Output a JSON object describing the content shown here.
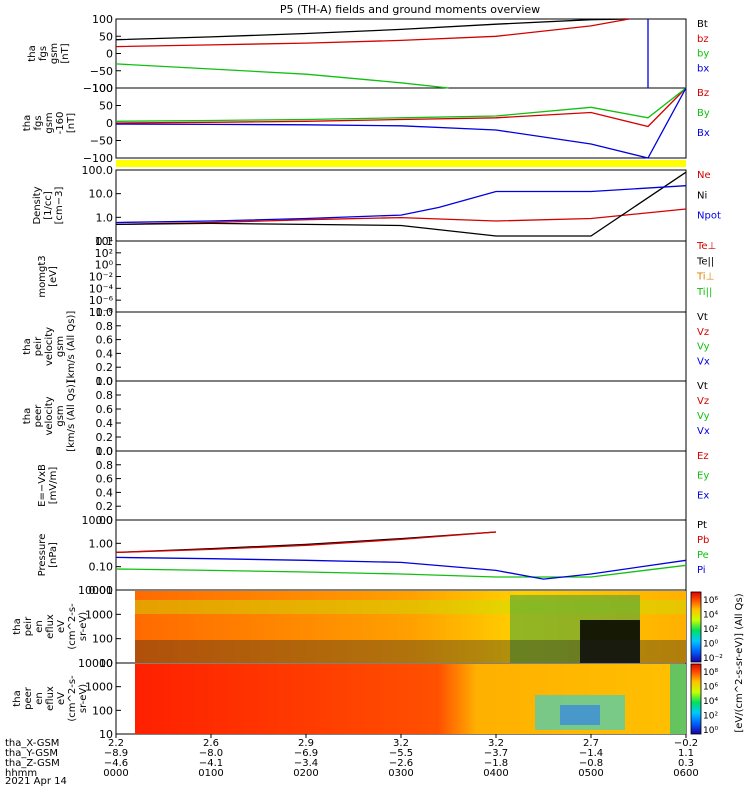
{
  "title": "P5 (TH-A) fields and ground moments overview",
  "panels": [
    {
      "id": "fgs_gsm",
      "ylabel": [
        "tha",
        "fgs",
        "gsm",
        "[nT]"
      ],
      "ticks": [
        "100",
        "50",
        "0",
        "−50",
        "−100"
      ],
      "legend": [
        "Bt",
        "bz",
        "by",
        "bx"
      ],
      "legend_colors": [
        "#000000",
        "#d40000",
        "#10c010",
        "#0000e0"
      ]
    },
    {
      "id": "fgs_gsm_1s",
      "ylabel": [
        "tha",
        "fgs",
        "gsm",
        "-160",
        "[nT]"
      ],
      "ticks": [
        "100",
        "50",
        "0",
        "−50",
        "−100"
      ],
      "legend": [
        "Bz",
        "By",
        "Bx"
      ],
      "legend_colors": [
        "#d40000",
        "#10c010",
        "#0000e0"
      ]
    },
    {
      "id": "density",
      "ylabel": [
        "Density",
        "[1/cc]",
        "[cm−3]"
      ],
      "ticks": [
        "100.0",
        "10.0",
        "1.0",
        "0.1"
      ],
      "legend": [
        "Ne",
        "Ni",
        "Npot"
      ],
      "legend_colors": [
        "#d40000",
        "#000000",
        "#0000e0"
      ]
    },
    {
      "id": "temperature",
      "ylabel": [
        "momgt3",
        "[eV]"
      ],
      "ticks": [
        "10⁴",
        "10²",
        "10⁰",
        "10⁻²",
        "10⁻⁴",
        "10⁻⁶",
        "10⁻⁸"
      ],
      "legend": [
        "Te⊥",
        "Te||",
        "Ti⊥",
        "Ti||"
      ],
      "legend_colors": [
        "#d40000",
        "#000000",
        "#e08000",
        "#10c010"
      ]
    },
    {
      "id": "peir_velocity",
      "ylabel": [
        "tha",
        "peir",
        "velocity",
        "gsm",
        "[km/s (All Qs)]"
      ],
      "ticks": [
        "1.0",
        "0.8",
        "0.6",
        "0.4",
        "0.2",
        "0.0"
      ],
      "legend": [
        "Vt",
        "Vz",
        "Vy",
        "Vx"
      ],
      "legend_colors": [
        "#000000",
        "#d40000",
        "#10c010",
        "#0000e0"
      ]
    },
    {
      "id": "peer_velocity",
      "ylabel": [
        "tha",
        "peer",
        "velocity",
        "gsm",
        "[km/s (All Qs)]"
      ],
      "ticks": [
        "1.0",
        "0.8",
        "0.6",
        "0.4",
        "0.2",
        "0.0"
      ],
      "legend": [
        "Vt",
        "Vz",
        "Vy",
        "Vx"
      ],
      "legend_colors": [
        "#000000",
        "#d40000",
        "#10c010",
        "#0000e0"
      ]
    },
    {
      "id": "efield",
      "ylabel": [
        "E=−VxB",
        "[mV/m]"
      ],
      "ticks": [
        "1.0",
        "0.8",
        "0.6",
        "0.4",
        "0.2",
        "0.0"
      ],
      "legend": [
        "Ez",
        "Ey",
        "Ex"
      ],
      "legend_colors": [
        "#d40000",
        "#10c010",
        "#0000e0"
      ]
    },
    {
      "id": "pressure",
      "ylabel": [
        "Pressure",
        "[nPa]"
      ],
      "ticks": [
        "10.00",
        "1.00",
        "0.10",
        "0.01"
      ],
      "legend": [
        "Pt",
        "Pb",
        "Pe",
        "Pi"
      ],
      "legend_colors": [
        "#000000",
        "#d40000",
        "#10c010",
        "#0000e0"
      ]
    },
    {
      "id": "peir_spec",
      "ylabel": [
        "tha",
        "peir",
        "en",
        "eflux",
        "eV",
        "(cm^2-s-",
        "sr-eV)"
      ],
      "ticks": [
        "10000",
        "1000",
        "100",
        "10"
      ]
    },
    {
      "id": "peer_spec",
      "ylabel": [
        "tha",
        "peer",
        "en",
        "eflux",
        "eV",
        "(cm^2-s-",
        "sr-eV)"
      ],
      "ticks": [
        "10000",
        "1000",
        "100",
        "10"
      ]
    }
  ],
  "colorbar": {
    "label": "[eV/(cm^2-s-sr-eV)] (All Qs)",
    "top_ticks": [
      "10⁶",
      "10⁴",
      "10²",
      "10⁰",
      "10⁻²"
    ],
    "bottom_ticks": [
      "10⁸",
      "10⁶",
      "10⁴",
      "10²",
      "10⁰"
    ]
  },
  "xaxis": {
    "rows": [
      {
        "label": "tha_X-GSM",
        "values": [
          "2.2",
          "2.6",
          "2.9",
          "3.2",
          "3.2",
          "2.7",
          "−0.2"
        ]
      },
      {
        "label": "tha_Y-GSM",
        "values": [
          "−8.9",
          "−8.0",
          "−6.9",
          "−5.5",
          "−3.7",
          "−1.4",
          "1.1"
        ]
      },
      {
        "label": "tha_Z-GSM",
        "values": [
          "−4.6",
          "−4.1",
          "−3.4",
          "−2.6",
          "−1.8",
          "−0.8",
          "0.3"
        ]
      },
      {
        "label": "hhmm",
        "values": [
          "0000",
          "0100",
          "0200",
          "0300",
          "0400",
          "0500",
          "0600"
        ]
      }
    ],
    "date": "2021 Apr 14"
  },
  "chart_data": {
    "type": "line",
    "title": "P5 (TH-A) fields and ground moments overview",
    "x_axis": {
      "label": "hhmm",
      "values": [
        "0000",
        "0100",
        "0200",
        "0300",
        "0400",
        "0500",
        "0600"
      ],
      "range_hours": [
        0,
        6
      ]
    },
    "series": [
      {
        "name": "Bt",
        "panel": "fgs_gsm",
        "t": [
          0,
          1,
          2,
          3,
          4,
          5,
          5.4
        ],
        "values": [
          40,
          48,
          58,
          70,
          85,
          98,
          100
        ]
      },
      {
        "name": "bz",
        "panel": "fgs_gsm",
        "t": [
          0,
          1,
          2,
          3,
          4,
          5,
          5.4
        ],
        "values": [
          20,
          25,
          30,
          38,
          50,
          80,
          100
        ]
      },
      {
        "name": "by",
        "panel": "fgs_gsm",
        "t": [
          0,
          1,
          2,
          3,
          3.5
        ],
        "values": [
          -30,
          -45,
          -60,
          -85,
          -100
        ]
      },
      {
        "name": "bx",
        "panel": "fgs_gsm",
        "t": [
          5.6,
          5.6
        ],
        "values": [
          -100,
          100
        ]
      },
      {
        "name": "Bz",
        "panel": "fgs_gsm_1s",
        "t": [
          0,
          1,
          2,
          3,
          4,
          5,
          5.6,
          6
        ],
        "values": [
          0,
          2,
          5,
          10,
          15,
          30,
          -10,
          100
        ]
      },
      {
        "name": "By",
        "panel": "fgs_gsm_1s",
        "t": [
          0,
          1,
          2,
          3,
          4,
          5,
          5.6,
          6
        ],
        "values": [
          5,
          7,
          10,
          15,
          20,
          45,
          15,
          100
        ]
      },
      {
        "name": "Bx",
        "panel": "fgs_gsm_1s",
        "t": [
          0,
          1,
          2,
          3,
          4,
          5,
          5.6,
          6
        ],
        "values": [
          -3,
          -4,
          -5,
          -8,
          -20,
          -60,
          -120,
          100
        ]
      },
      {
        "name": "Ne",
        "panel": "density",
        "t": [
          0,
          1,
          2,
          3,
          4,
          5,
          6
        ],
        "values": [
          0.4,
          0.5,
          0.7,
          0.9,
          0.6,
          0.8,
          2.5
        ]
      },
      {
        "name": "Ni",
        "panel": "density",
        "t": [
          0,
          1,
          2,
          3,
          4,
          5,
          6
        ],
        "values": [
          0.4,
          0.45,
          0.4,
          0.35,
          0.1,
          0.1,
          200
        ]
      },
      {
        "name": "Npot",
        "panel": "density",
        "t": [
          0,
          1,
          2,
          3,
          3.4,
          4,
          5,
          6
        ],
        "values": [
          0.5,
          0.6,
          0.8,
          1.2,
          3,
          20,
          20,
          40
        ]
      },
      {
        "name": "Pt",
        "panel": "pressure",
        "t": [
          0,
          1,
          2,
          3,
          4
        ],
        "values": [
          0.6,
          1,
          1.8,
          4,
          10
        ]
      },
      {
        "name": "Pb",
        "panel": "pressure",
        "t": [
          0,
          1,
          2,
          3,
          4
        ],
        "values": [
          0.6,
          0.9,
          1.6,
          3.6,
          10
        ]
      },
      {
        "name": "Pe",
        "panel": "pressure",
        "t": [
          0,
          1,
          2,
          3,
          4,
          5,
          6
        ],
        "values": [
          0.06,
          0.05,
          0.04,
          0.03,
          0.02,
          0.02,
          0.1
        ]
      },
      {
        "name": "Pi",
        "panel": "pressure",
        "t": [
          0,
          1,
          2,
          3,
          4,
          4.5,
          5,
          6
        ],
        "values": [
          0.3,
          0.25,
          0.2,
          0.15,
          0.05,
          0.015,
          0.03,
          0.2
        ]
      }
    ]
  }
}
